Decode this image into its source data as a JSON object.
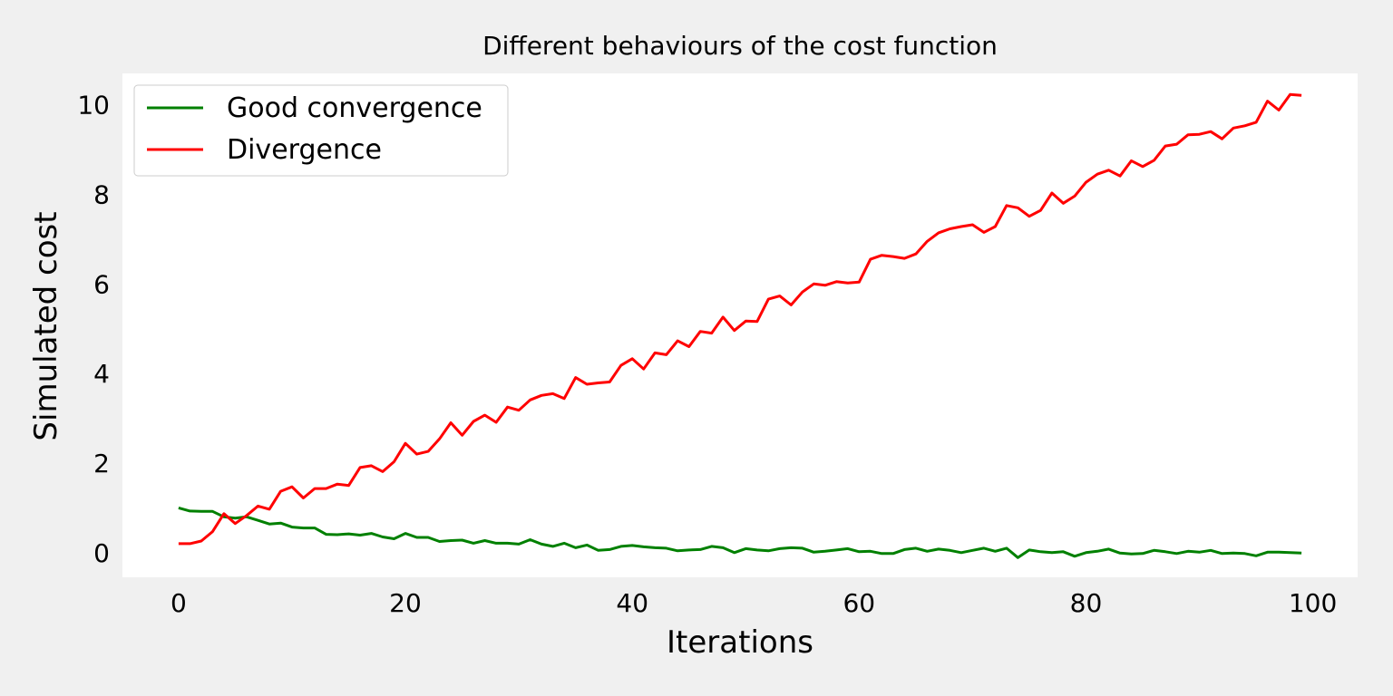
{
  "chart_data": {
    "type": "line",
    "title": "Different behaviours of the cost function",
    "xlabel": "Iterations",
    "ylabel": "Simulated cost",
    "xlim": [
      -4.95,
      103.95
    ],
    "ylim": [
      -0.55,
      10.7
    ],
    "xticks": [
      0,
      20,
      40,
      60,
      80,
      100
    ],
    "yticks": [
      0,
      2,
      4,
      6,
      8,
      10
    ],
    "grid": false,
    "legend_position": "top-left",
    "colors": {
      "background": "#f0f0f0",
      "plot_area": "#ffffff",
      "legend_border": "#cccccc"
    },
    "x": [
      0,
      1,
      2,
      3,
      4,
      5,
      6,
      7,
      8,
      9,
      10,
      11,
      12,
      13,
      14,
      15,
      16,
      17,
      18,
      19,
      20,
      21,
      22,
      23,
      24,
      25,
      26,
      27,
      28,
      29,
      30,
      31,
      32,
      33,
      34,
      35,
      36,
      37,
      38,
      39,
      40,
      41,
      42,
      43,
      44,
      45,
      46,
      47,
      48,
      49,
      50,
      51,
      52,
      53,
      54,
      55,
      56,
      57,
      58,
      59,
      60,
      61,
      62,
      63,
      64,
      65,
      66,
      67,
      68,
      69,
      70,
      71,
      72,
      73,
      74,
      75,
      76,
      77,
      78,
      79,
      80,
      81,
      82,
      83,
      84,
      85,
      86,
      87,
      88,
      89,
      90,
      91,
      92,
      93,
      94,
      95,
      96,
      97,
      98,
      99
    ],
    "series": [
      {
        "name": "Good convergence",
        "color": "#008000",
        "values": [
          1.0,
          0.93,
          0.92,
          0.92,
          0.8,
          0.77,
          0.8,
          0.72,
          0.64,
          0.66,
          0.57,
          0.55,
          0.55,
          0.41,
          0.4,
          0.42,
          0.39,
          0.43,
          0.35,
          0.31,
          0.43,
          0.34,
          0.34,
          0.25,
          0.27,
          0.28,
          0.21,
          0.27,
          0.21,
          0.21,
          0.19,
          0.29,
          0.19,
          0.14,
          0.21,
          0.11,
          0.17,
          0.05,
          0.07,
          0.14,
          0.16,
          0.13,
          0.11,
          0.1,
          0.04,
          0.06,
          0.07,
          0.14,
          0.11,
          0.0,
          0.09,
          0.06,
          0.04,
          0.09,
          0.11,
          0.1,
          0.01,
          0.03,
          0.06,
          0.09,
          0.02,
          0.03,
          -0.02,
          -0.02,
          0.07,
          0.1,
          0.03,
          0.08,
          0.05,
          0.0,
          0.05,
          0.1,
          0.03,
          0.1,
          -0.11,
          0.06,
          0.02,
          0.0,
          0.02,
          -0.08,
          0.0,
          0.03,
          0.08,
          -0.01,
          -0.03,
          -0.02,
          0.05,
          0.02,
          -0.02,
          0.03,
          0.01,
          0.05,
          -0.02,
          -0.01,
          -0.02,
          -0.07,
          0.01,
          0.01,
          0.0,
          -0.01
        ]
      },
      {
        "name": "Divergence",
        "color": "#ff0000",
        "values": [
          0.2,
          0.2,
          0.26,
          0.47,
          0.87,
          0.65,
          0.83,
          1.04,
          0.97,
          1.37,
          1.47,
          1.22,
          1.43,
          1.43,
          1.53,
          1.5,
          1.9,
          1.94,
          1.81,
          2.03,
          2.44,
          2.2,
          2.26,
          2.54,
          2.9,
          2.62,
          2.93,
          3.07,
          2.91,
          3.25,
          3.18,
          3.41,
          3.51,
          3.55,
          3.44,
          3.91,
          3.76,
          3.79,
          3.81,
          4.18,
          4.33,
          4.1,
          4.46,
          4.42,
          4.73,
          4.6,
          4.94,
          4.9,
          5.26,
          4.96,
          5.17,
          5.16,
          5.66,
          5.73,
          5.53,
          5.82,
          6.0,
          5.97,
          6.05,
          6.02,
          6.04,
          6.55,
          6.64,
          6.61,
          6.57,
          6.67,
          6.95,
          7.14,
          7.23,
          7.28,
          7.32,
          7.15,
          7.28,
          7.75,
          7.7,
          7.51,
          7.64,
          8.03,
          7.8,
          7.96,
          8.27,
          8.45,
          8.54,
          8.41,
          8.75,
          8.62,
          8.76,
          9.08,
          9.12,
          9.33,
          9.34,
          9.4,
          9.24,
          9.48,
          9.53,
          9.61,
          10.08,
          9.88,
          10.23,
          10.21
        ]
      }
    ]
  }
}
